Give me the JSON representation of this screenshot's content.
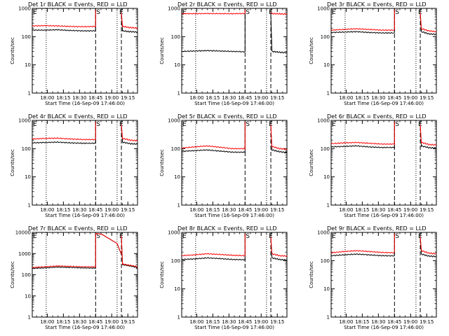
{
  "colors": {
    "events": "#000000",
    "lld": "#ff0000",
    "axis": "#000000"
  },
  "chart_data": [
    {
      "type": "line",
      "title": "Det 1r BLACK = Events, RED = LLD",
      "xlabel": "Start Time (16-Sep-09 17:46:00)",
      "ylabel": "Counts/sec",
      "log_y": true,
      "ylim": [
        1,
        1000
      ],
      "y_ticks": [
        "1",
        "10",
        "100",
        "1000"
      ],
      "x_range": [
        "17:46",
        "19:24"
      ],
      "x_ticks": [
        "18:00",
        "18:15",
        "18:30",
        "18:45",
        "19:00",
        "19:15"
      ],
      "markers": {
        "start": "S",
        "end": "E"
      },
      "vlines": {
        "dotted": [
          "17:59",
          "19:05"
        ],
        "dashed": [
          "18:45",
          "19:09"
        ]
      },
      "gap": [
        "18:45",
        "19:09"
      ],
      "series": [
        {
          "name": "Events",
          "color": "#000000",
          "before": [
            170,
            170,
            175,
            165,
            160,
            160
          ],
          "after": [
            160,
            150,
            145
          ]
        },
        {
          "name": "LLD",
          "color": "#ff0000",
          "before": [
            240,
            245,
            240,
            230,
            225,
            230
          ],
          "after": [
            230,
            210,
            200
          ]
        }
      ]
    },
    {
      "type": "line",
      "title": "Det 2r BLACK = Events, RED = LLD",
      "xlabel": "Start Time (16-Sep-09 17:46:00)",
      "ylabel": "Counts/sec",
      "log_y": true,
      "ylim": [
        1,
        1000
      ],
      "y_ticks": [
        "1",
        "10",
        "100",
        "1000"
      ],
      "x_range": [
        "17:46",
        "19:24"
      ],
      "x_ticks": [
        "18:00",
        "18:15",
        "18:30",
        "18:45",
        "19:00",
        "19:15"
      ],
      "markers": {
        "start": "S",
        "end": "E"
      },
      "vlines": {
        "dotted": [
          "17:59",
          "19:05"
        ],
        "dashed": [
          "18:45",
          "19:09"
        ]
      },
      "gap": [
        "18:45",
        "19:09"
      ],
      "series": [
        {
          "name": "Events",
          "color": "#000000",
          "before": [
            30,
            31,
            32,
            31,
            30,
            29
          ],
          "after": [
            30,
            28,
            27
          ]
        },
        {
          "name": "LLD",
          "color": "#ff0000",
          "before": [
            650,
            650,
            660,
            650,
            650,
            660
          ],
          "after": [
            660,
            640,
            630
          ]
        }
      ]
    },
    {
      "type": "line",
      "title": "Det 3r BLACK = Events, RED = LLD",
      "xlabel": "Start Time (16-Sep-09 17:46:00)",
      "ylabel": "Counts/sec",
      "log_y": true,
      "ylim": [
        1,
        1000
      ],
      "y_ticks": [
        "1",
        "10",
        "100",
        "1000"
      ],
      "x_range": [
        "17:46",
        "19:24"
      ],
      "x_ticks": [
        "18:00",
        "18:15",
        "18:30",
        "18:45",
        "19:00",
        "19:15"
      ],
      "markers": {
        "start": "S",
        "end": "E"
      },
      "vlines": {
        "dotted": [
          "17:59",
          "19:05"
        ],
        "dashed": [
          "18:45",
          "19:09"
        ]
      },
      "gap": [
        "18:45",
        "19:09"
      ],
      "series": [
        {
          "name": "Events",
          "color": "#000000",
          "before": [
            140,
            145,
            150,
            140,
            135,
            135
          ],
          "after": [
            150,
            125,
            120
          ]
        },
        {
          "name": "LLD",
          "color": "#ff0000",
          "before": [
            170,
            180,
            190,
            180,
            170,
            170
          ],
          "after": [
            190,
            160,
            150
          ]
        }
      ]
    },
    {
      "type": "line",
      "title": "Det 4r BLACK = Events, RED = LLD",
      "xlabel": "Start Time (16-Sep-09 17:46:00)",
      "ylabel": "Counts/sec",
      "log_y": true,
      "ylim": [
        1,
        1000
      ],
      "y_ticks": [
        "1",
        "10",
        "100",
        "1000"
      ],
      "x_range": [
        "17:46",
        "19:24"
      ],
      "x_ticks": [
        "18:00",
        "18:15",
        "18:30",
        "18:45",
        "19:00",
        "19:15"
      ],
      "markers": {
        "start": "S",
        "end": "E"
      },
      "vlines": {
        "dotted": [
          "17:59",
          "19:05"
        ],
        "dashed": [
          "18:45",
          "19:09"
        ]
      },
      "gap": [
        "18:45",
        "19:09"
      ],
      "series": [
        {
          "name": "Events",
          "color": "#000000",
          "before": [
            160,
            165,
            170,
            160,
            155,
            155
          ],
          "after": [
            170,
            150,
            145
          ]
        },
        {
          "name": "LLD",
          "color": "#ff0000",
          "before": [
            220,
            230,
            235,
            220,
            210,
            210
          ],
          "after": [
            230,
            200,
            190
          ]
        }
      ]
    },
    {
      "type": "line",
      "title": "Det 5r BLACK = Events, RED = LLD",
      "xlabel": "Start Time (16-Sep-09 17:46:00)",
      "ylabel": "Counts/sec",
      "log_y": true,
      "ylim": [
        1,
        1000
      ],
      "y_ticks": [
        "1",
        "10",
        "100",
        "1000"
      ],
      "x_range": [
        "17:46",
        "19:24"
      ],
      "x_ticks": [
        "18:00",
        "18:15",
        "18:30",
        "18:45",
        "19:00",
        "19:15"
      ],
      "markers": {
        "start": "S",
        "end": "E"
      },
      "vlines": {
        "dotted": [
          "17:59",
          "19:05"
        ],
        "dashed": [
          "18:45",
          "19:09"
        ]
      },
      "gap": [
        "18:45",
        "19:09"
      ],
      "series": [
        {
          "name": "Events",
          "color": "#000000",
          "before": [
            80,
            85,
            90,
            82,
            75,
            75
          ],
          "after": [
            90,
            78,
            72
          ]
        },
        {
          "name": "LLD",
          "color": "#ff0000",
          "before": [
            105,
            115,
            125,
            112,
            100,
            100
          ],
          "after": [
            120,
            100,
            95
          ]
        }
      ]
    },
    {
      "type": "line",
      "title": "Det 6r BLACK = Events, RED = LLD",
      "xlabel": "Start Time (16-Sep-09 17:46:00)",
      "ylabel": "Counts/sec",
      "log_y": true,
      "ylim": [
        1,
        1000
      ],
      "y_ticks": [
        "1",
        "10",
        "100",
        "1000"
      ],
      "x_range": [
        "17:46",
        "19:24"
      ],
      "x_ticks": [
        "18:00",
        "18:15",
        "18:30",
        "18:45",
        "19:00",
        "19:15"
      ],
      "markers": {
        "start": "S",
        "end": "E"
      },
      "vlines": {
        "dotted": [
          "17:59",
          "19:05"
        ],
        "dashed": [
          "18:45",
          "19:09"
        ]
      },
      "gap": [
        "18:45",
        "19:09"
      ],
      "series": [
        {
          "name": "Events",
          "color": "#000000",
          "before": [
            115,
            120,
            125,
            115,
            110,
            110
          ],
          "after": [
            125,
            108,
            105
          ]
        },
        {
          "name": "LLD",
          "color": "#ff0000",
          "before": [
            150,
            160,
            165,
            155,
            145,
            145
          ],
          "after": [
            165,
            140,
            135
          ]
        }
      ]
    },
    {
      "type": "line",
      "title": "Det 7r BLACK = Events, RED = LLD",
      "xlabel": "Start Time (16-Sep-09 17:46:00)",
      "ylabel": "Counts/sec",
      "log_y": true,
      "ylim": [
        1,
        10000
      ],
      "y_ticks": [
        "1",
        "10",
        "100",
        "1000",
        "10000"
      ],
      "x_range": [
        "17:46",
        "19:24"
      ],
      "x_ticks": [
        "18:00",
        "18:15",
        "18:30",
        "18:45",
        "19:00",
        "19:15"
      ],
      "markers": {
        "start": "S",
        "end": "E"
      },
      "vlines": {
        "dotted": [
          "17:59",
          "19:05"
        ],
        "dashed": [
          "18:45",
          "19:09"
        ]
      },
      "gap": null,
      "series": [
        {
          "name": "Events",
          "color": "#000000",
          "before": [
            200,
            210,
            230,
            220,
            210,
            205
          ],
          "after": [
            300,
            260,
            220
          ]
        },
        {
          "name": "LLD",
          "color": "#ff0000",
          "before": [
            220,
            240,
            260,
            250,
            240,
            235
          ],
          "after": [
            320,
            280,
            240
          ]
        }
      ]
    },
    {
      "type": "line",
      "title": "Det 8r BLACK = Events, RED = LLD",
      "xlabel": "Start Time (16-Sep-09 17:46:00)",
      "ylabel": "Counts/sec",
      "log_y": true,
      "ylim": [
        1,
        1000
      ],
      "y_ticks": [
        "1",
        "10",
        "100",
        "1000"
      ],
      "x_range": [
        "17:46",
        "19:24"
      ],
      "x_ticks": [
        "18:00",
        "18:15",
        "18:30",
        "18:45",
        "19:00",
        "19:15"
      ],
      "markers": {
        "start": "S",
        "end": "E"
      },
      "vlines": {
        "dotted": [
          "17:59",
          "19:05"
        ],
        "dashed": [
          "18:45",
          "19:09"
        ]
      },
      "gap": [
        "18:45",
        "19:09"
      ],
      "series": [
        {
          "name": "Events",
          "color": "#000000",
          "before": [
            110,
            115,
            125,
            118,
            110,
            108
          ],
          "after": [
            125,
            110,
            105
          ]
        },
        {
          "name": "LLD",
          "color": "#ff0000",
          "before": [
            150,
            160,
            175,
            165,
            155,
            150
          ],
          "after": [
            175,
            150,
            145
          ]
        }
      ]
    },
    {
      "type": "line",
      "title": "Det 9r BLACK = Events, RED = LLD",
      "xlabel": "Start Time (16-Sep-09 17:46:00)",
      "ylabel": "Counts/sec",
      "log_y": true,
      "ylim": [
        1,
        1000
      ],
      "y_ticks": [
        "1",
        "10",
        "100",
        "1000"
      ],
      "x_range": [
        "17:46",
        "19:24"
      ],
      "x_ticks": [
        "18:00",
        "18:15",
        "18:30",
        "18:45",
        "19:00",
        "19:15"
      ],
      "markers": {
        "start": "S",
        "end": "E"
      },
      "vlines": {
        "dotted": [
          "17:59",
          "19:05"
        ],
        "dashed": [
          "18:45",
          "19:09"
        ]
      },
      "gap": [
        "18:45",
        "19:09"
      ],
      "series": [
        {
          "name": "Events",
          "color": "#000000",
          "before": [
            150,
            160,
            170,
            160,
            150,
            148
          ],
          "after": [
            170,
            145,
            140
          ]
        },
        {
          "name": "LLD",
          "color": "#ff0000",
          "before": [
            190,
            210,
            225,
            210,
            195,
            190
          ],
          "after": [
            225,
            185,
            175
          ]
        }
      ]
    }
  ]
}
